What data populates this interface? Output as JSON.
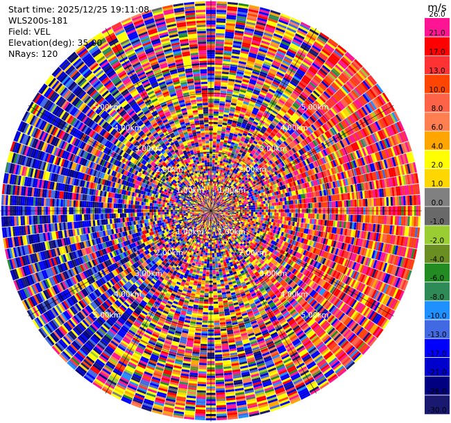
{
  "info": {
    "start_time": "Start time: 2025/12/25 19:11:08",
    "station": "WLS200s-181",
    "field": "Field: VEL",
    "elevation": "Elevation(deg): 35.00",
    "nrays": "NRays: 120"
  },
  "chart_data": {
    "type": "heatmap",
    "projection": "polar-ppi",
    "field": "VEL",
    "units": "m/s",
    "n_rays": 120,
    "elevation_deg": 35.0,
    "max_range_km": 7.2,
    "range_rings_km": [
      1,
      2,
      3,
      4,
      5
    ],
    "ring_labels": [
      "1.00km",
      "2.00km",
      "3.00km",
      "4.00km",
      "5.00km"
    ],
    "grid": true,
    "colorbar": {
      "label": "m/s",
      "placement": "right",
      "colors": [
        "#191970",
        "#000080",
        "#0000cd",
        "#0000ff",
        "#4169e1",
        "#1e90ff",
        "#2e8b57",
        "#228b22",
        "#6b8e23",
        "#9acd32",
        "#696969",
        "#808080",
        "#ffd700",
        "#ffff00",
        "#ffa500",
        "#ff7f50",
        "#ff6347",
        "#ff4500",
        "#ff3333",
        "#ff0000",
        "#ff1493"
      ],
      "tick_labels": [
        "-30.0",
        "-26.0",
        "-21.0",
        "-17.0",
        "-13.0",
        "-10.0",
        "-8.0",
        "-6.0",
        "-4.0",
        "-2.0",
        "-1.0",
        "0.0",
        "1.0",
        "2.0",
        "4.0",
        "6.0",
        "8.0",
        "10.0",
        "13.0",
        "17.0",
        "21.0",
        "26.0"
      ]
    }
  }
}
